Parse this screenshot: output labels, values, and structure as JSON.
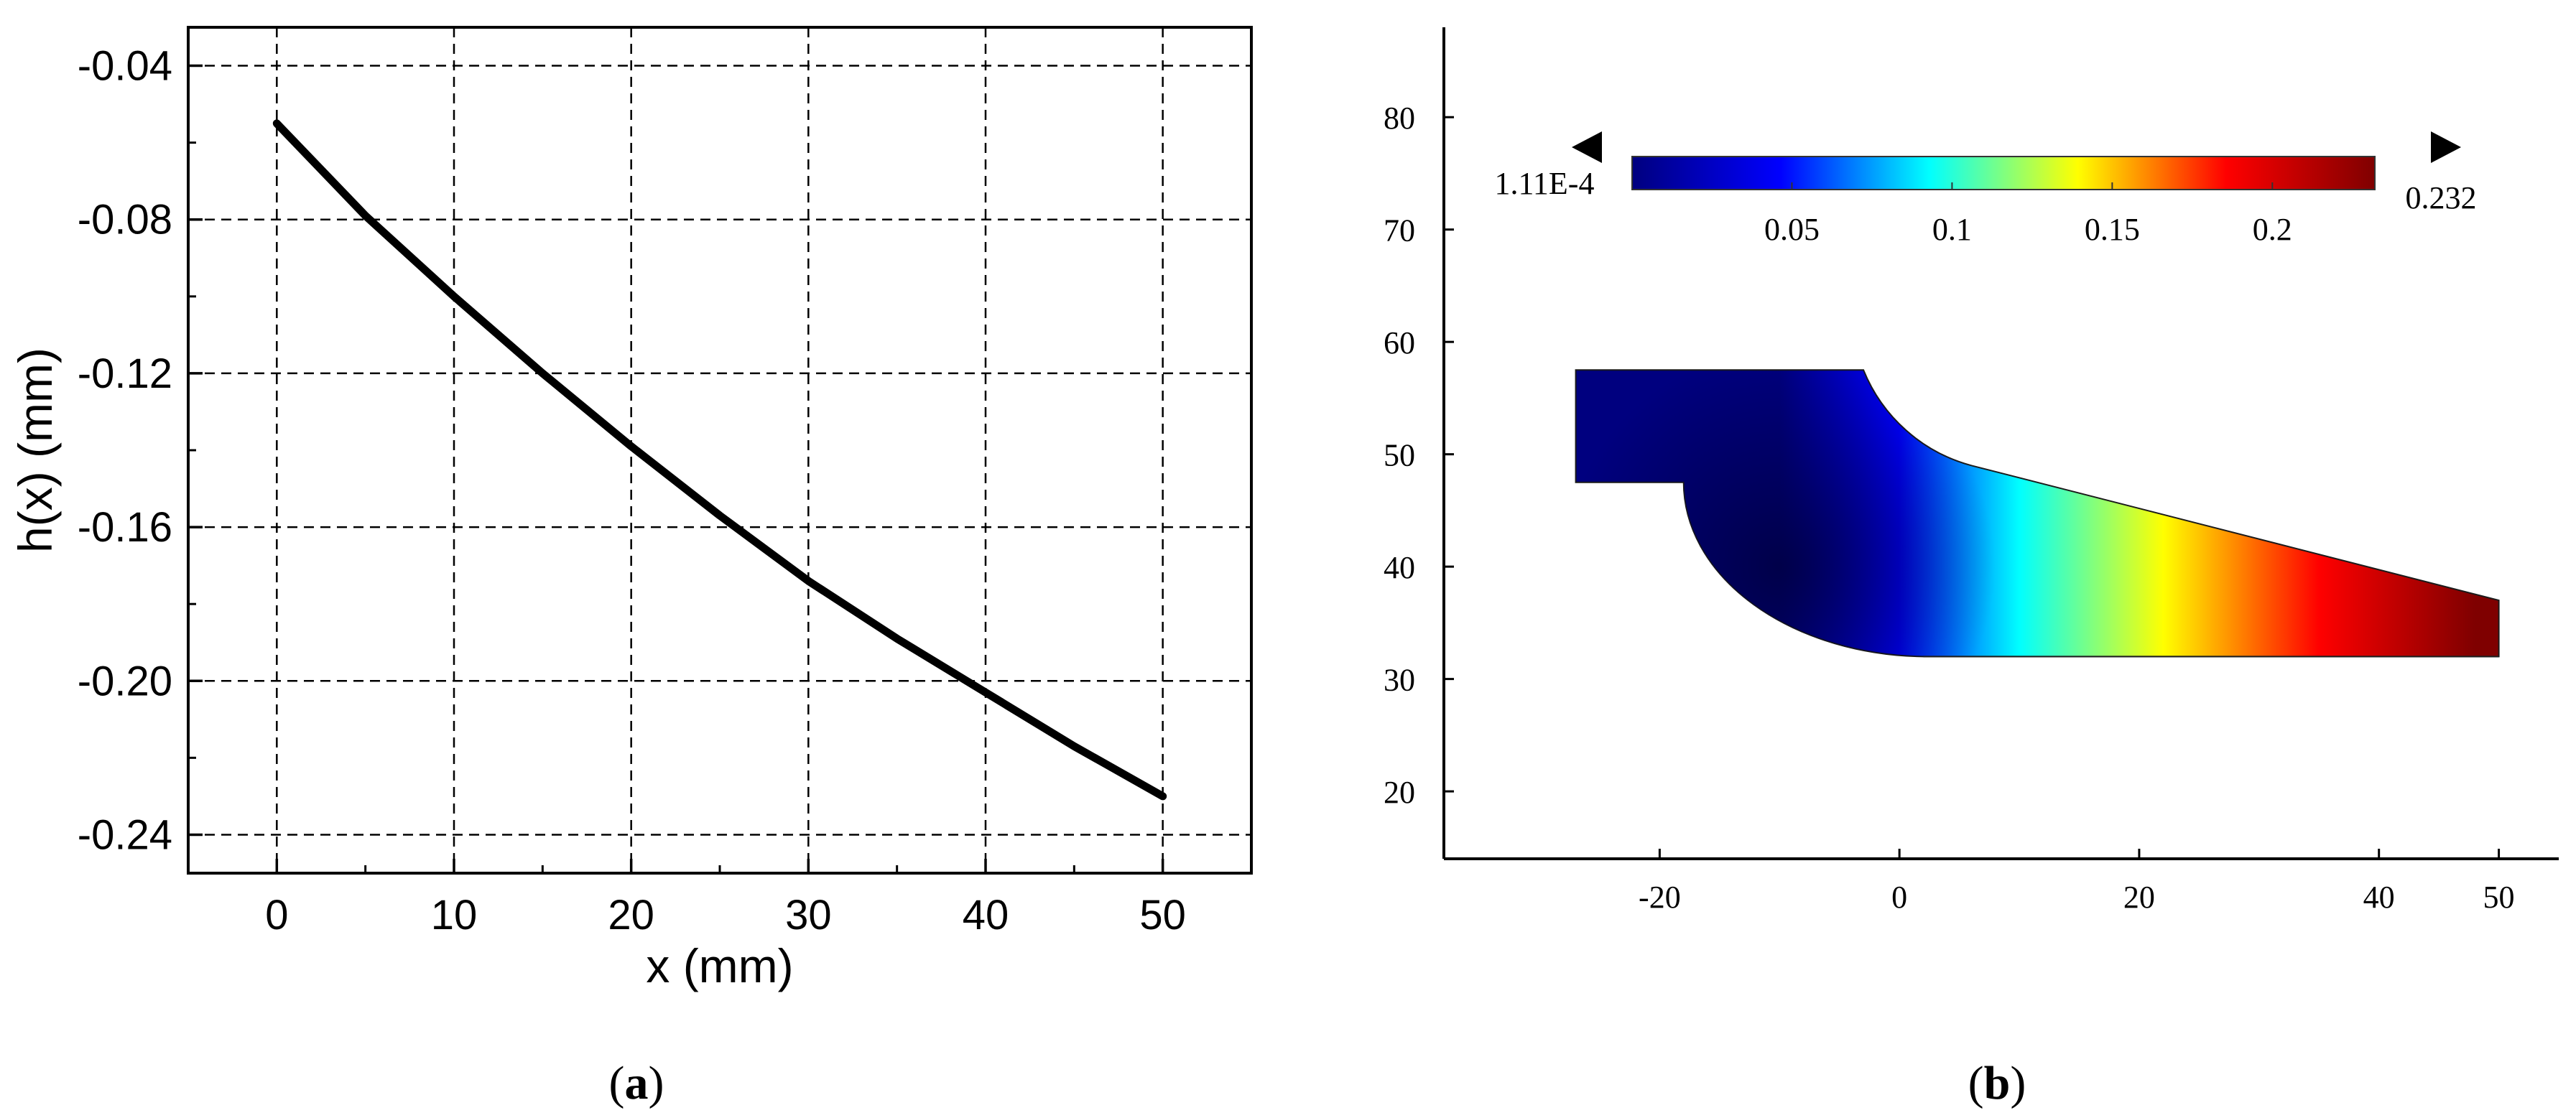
{
  "chart_data": [
    {
      "type": "line",
      "caption": "(a)",
      "xlabel": "x (mm)",
      "ylabel": "h(x) (mm)",
      "xlim": [
        -5,
        55
      ],
      "ylim": [
        -0.25,
        -0.03
      ],
      "xticks": [
        0,
        10,
        20,
        30,
        40,
        50
      ],
      "yticks": [
        -0.04,
        -0.08,
        -0.12,
        -0.16,
        -0.2,
        -0.24
      ],
      "ytick_labels": [
        "-0.04",
        "-0.08",
        "-0.12",
        "-0.16",
        "-0.20",
        "-0.24"
      ],
      "grid": true,
      "series": [
        {
          "color": "#000000",
          "x": [
            0,
            5,
            10,
            15,
            20,
            25,
            30,
            35,
            40,
            45,
            50
          ],
          "y": [
            -0.055,
            -0.079,
            -0.1,
            -0.12,
            -0.139,
            -0.157,
            -0.174,
            -0.189,
            -0.203,
            -0.217,
            -0.23
          ]
        }
      ]
    },
    {
      "type": "heatmap",
      "caption": "(b)",
      "xlim": [
        -38,
        55
      ],
      "ylim": [
        14,
        88
      ],
      "xticks": [
        -20,
        0,
        20,
        40,
        50
      ],
      "yticks": [
        20,
        30,
        40,
        50,
        60,
        70,
        80
      ],
      "colorbar": {
        "min_label": "1.11E-4",
        "max_label": "0.232",
        "min": 0.000111,
        "max": 0.232,
        "ticks": [
          0.05,
          0.1,
          0.15,
          0.2
        ],
        "tick_labels": [
          "0.05",
          "0.1",
          "0.15",
          "0.2"
        ],
        "colormap": [
          "#00007f",
          "#0000ff",
          "#00ffff",
          "#ffff00",
          "#ff0000",
          "#7f0000"
        ]
      },
      "geometry_outline": [
        [
          -27,
          57.5
        ],
        [
          -3,
          57.5
        ],
        [
          -18,
          47.5
        ],
        [
          -27,
          47.5
        ],
        [
          -18,
          32
        ],
        [
          50,
          32
        ],
        [
          50,
          37
        ]
      ],
      "field_gradient_x": [
        -10,
        0,
        10,
        22,
        35,
        48
      ]
    }
  ]
}
